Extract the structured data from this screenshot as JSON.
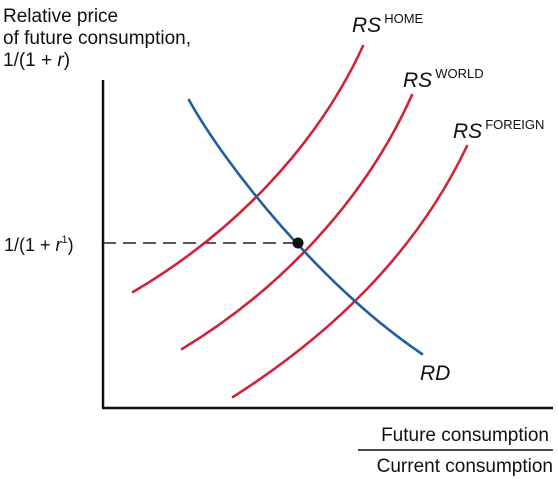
{
  "diagram": {
    "y_axis_title": {
      "line1": "Relative price",
      "line2": "of future consumption,",
      "line3_pre": "1/(1 + ",
      "line3_var": "r",
      "line3_post": ")"
    },
    "x_axis_title": {
      "numerator": "Future consumption",
      "denominator": "Current consumption"
    },
    "equilibrium_label": {
      "pre": "1/(1 + ",
      "var": "r",
      "sup": "1",
      "post": ")"
    },
    "curves": {
      "rs_home": {
        "name": "RS",
        "sup": "HOME",
        "color": "#d0233a"
      },
      "rs_world": {
        "name": "RS",
        "sup": "WORLD",
        "color": "#d0233a"
      },
      "rs_foreign": {
        "name": "RS",
        "sup": "FOREIGN",
        "color": "#d0233a"
      },
      "rd": {
        "name": "RD",
        "color": "#1f5fa0"
      }
    }
  }
}
